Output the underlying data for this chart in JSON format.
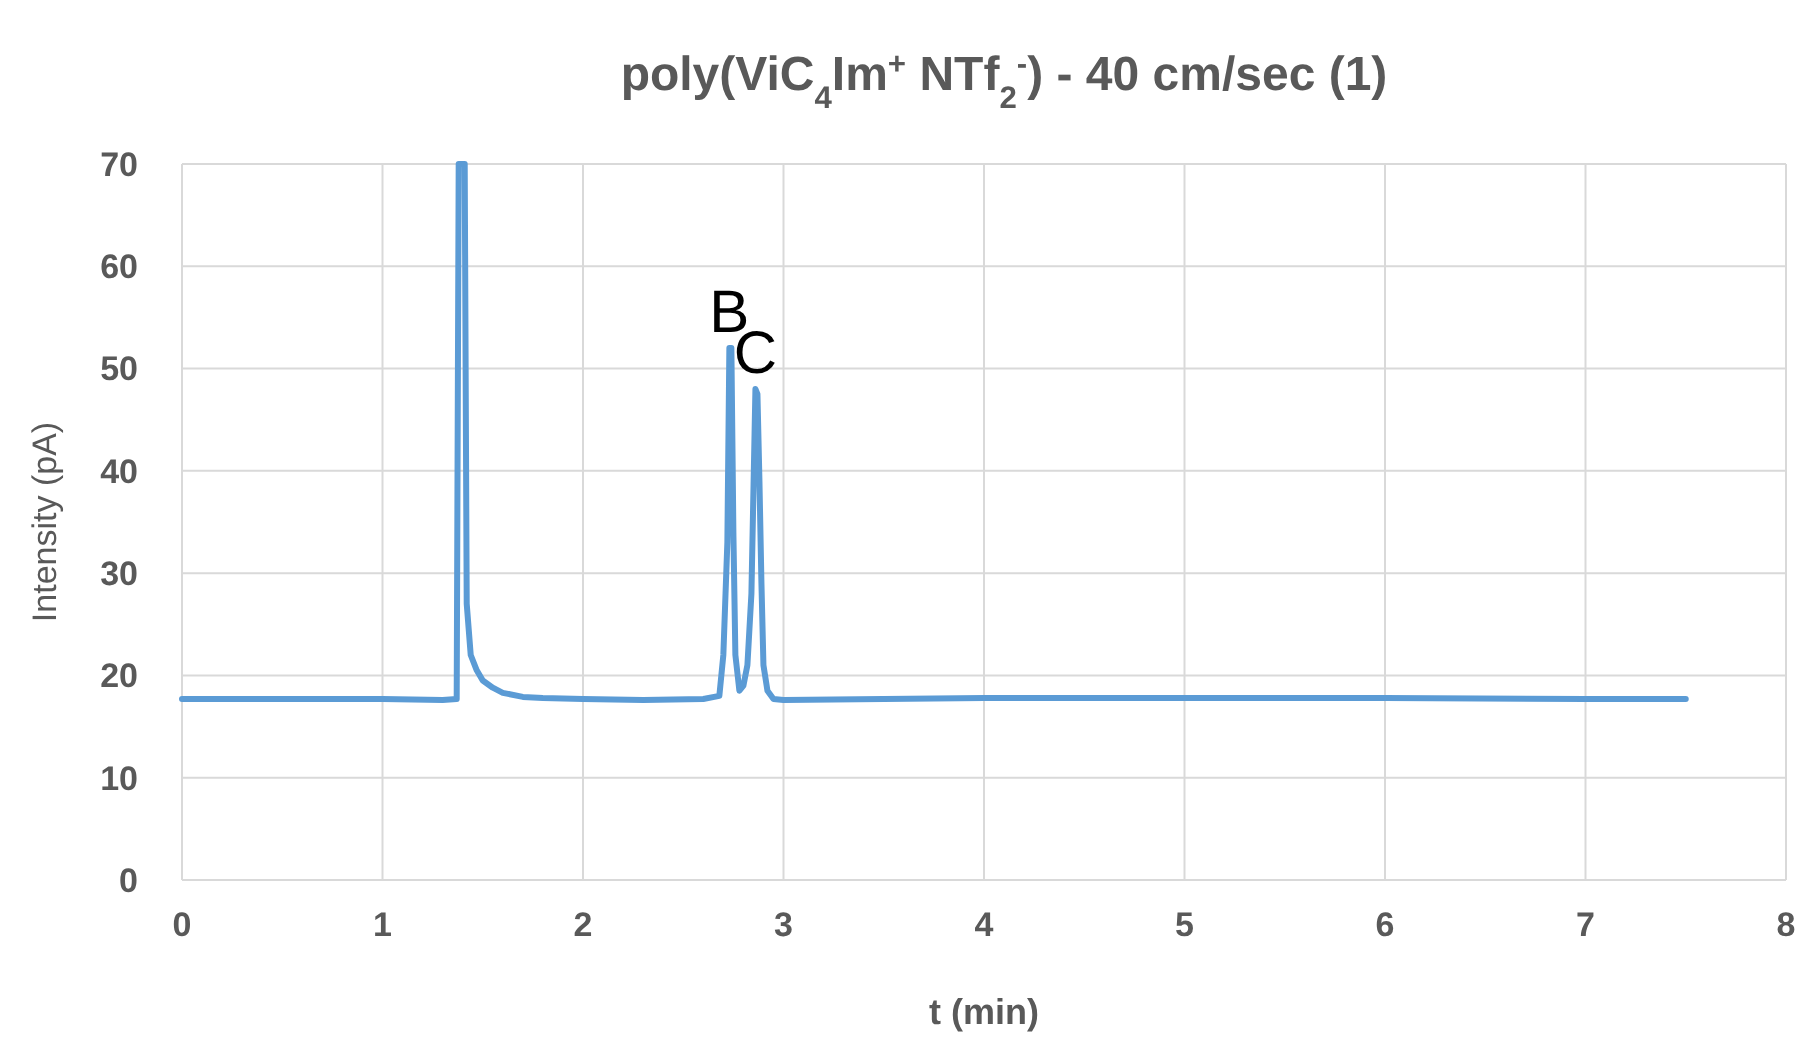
{
  "chart_data": {
    "type": "line",
    "title": "poly(ViC$_{4}$Im$^{+}$ NTf$_{2}$$^{-}$) - 40 cm/sec (1)",
    "xlabel": "t (min)",
    "ylabel": "Intensity (pA)",
    "x": [
      0,
      0.5,
      1,
      1.3,
      1.37,
      1.38,
      1.39,
      1.4,
      1.41,
      1.42,
      1.44,
      1.47,
      1.5,
      1.55,
      1.6,
      1.7,
      1.8,
      2,
      2.3,
      2.6,
      2.68,
      2.7,
      2.72,
      2.73,
      2.74,
      2.75,
      2.76,
      2.78,
      2.8,
      2.82,
      2.84,
      2.86,
      2.87,
      2.88,
      2.89,
      2.9,
      2.92,
      2.95,
      3,
      3.5,
      4,
      5,
      6,
      7,
      7.5
    ],
    "series": [
      {
        "color": "#5b9bd5",
        "values": [
          17.7,
          17.7,
          17.7,
          17.6,
          17.7,
          70,
          70,
          70,
          70,
          27,
          22,
          20.5,
          19.5,
          18.8,
          18.3,
          17.9,
          17.8,
          17.7,
          17.6,
          17.7,
          18,
          22,
          33,
          52,
          52,
          34,
          22,
          18.5,
          19,
          21,
          28,
          48,
          47.5,
          39,
          29,
          21,
          18.5,
          17.7,
          17.6,
          17.7,
          17.8,
          17.8,
          17.8,
          17.7,
          17.7
        ]
      }
    ],
    "xlim": [
      0,
      8
    ],
    "xticks": [
      0,
      1,
      2,
      3,
      4,
      5,
      6,
      7,
      8
    ],
    "ylim": [
      0,
      70
    ],
    "yticks": [
      0,
      10,
      20,
      30,
      40,
      50,
      60,
      70
    ],
    "grid": true,
    "annotations": [
      {
        "text": "B",
        "x": 2.73,
        "y": 52
      },
      {
        "text": "C",
        "x": 2.86,
        "y": 48
      }
    ]
  }
}
